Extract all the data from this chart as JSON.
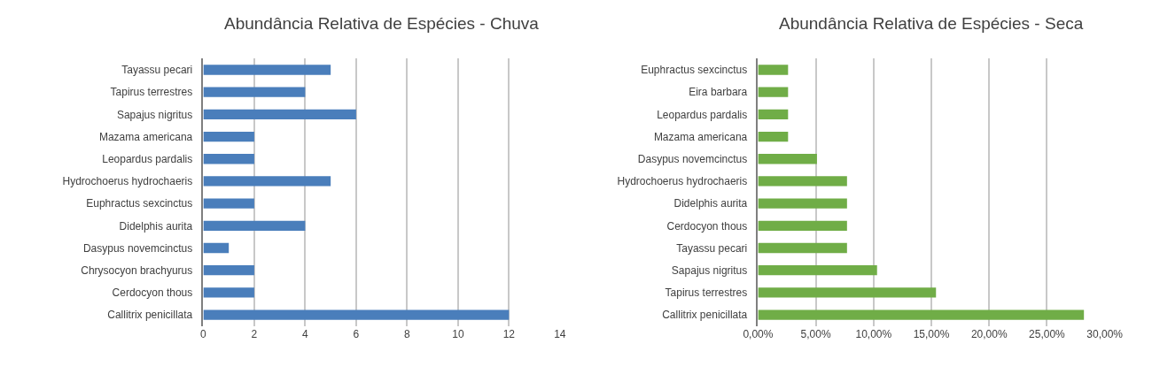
{
  "chart_data": [
    {
      "type": "bar",
      "orientation": "horizontal",
      "title": "Abundância Relativa de Espécies - Chuva",
      "categories": [
        "Tayassu pecari",
        "Tapirus terrestres",
        "Sapajus nigritus",
        "Mazama americana",
        "Leopardus pardalis",
        "Hydrochoerus hydrochaeris",
        "Euphractus sexcinctus",
        "Didelphis aurita",
        "Dasypus novemcinctus",
        "Chrysocyon brachyurus",
        "Cerdocyon thous",
        "Callitrix penicillata"
      ],
      "values": [
        5,
        4,
        6,
        2,
        2,
        5,
        2,
        4,
        1,
        2,
        2,
        12
      ],
      "color": "#4a7ebb",
      "xlim": [
        0,
        14
      ],
      "xticks": [
        0,
        2,
        4,
        6,
        8,
        10,
        12,
        14
      ],
      "grid": "x"
    },
    {
      "type": "bar",
      "orientation": "horizontal",
      "title": "Abundância Relativa de Espécies - Seca",
      "categories": [
        "Euphractus sexcinctus",
        "Eira barbara",
        "Leopardus pardalis",
        "Mazama americana",
        "Dasypus novemcinctus",
        "Hydrochoerus hydrochaeris",
        "Didelphis aurita",
        "Cerdocyon thous",
        "Tayassu pecari",
        "Sapajus nigritus",
        "Tapirus terrestres",
        "Callitrix penicillata"
      ],
      "values": [
        2.6,
        2.6,
        2.6,
        2.6,
        5.1,
        7.7,
        7.7,
        7.7,
        7.7,
        10.3,
        15.4,
        28.2
      ],
      "color": "#70ad47",
      "xlim": [
        0,
        30
      ],
      "xticks": [
        {
          "value": 0,
          "label": "0,00%"
        },
        {
          "value": 5,
          "label": "5,00%"
        },
        {
          "value": 10,
          "label": "10,00%"
        },
        {
          "value": 15,
          "label": "15,00%"
        },
        {
          "value": 20,
          "label": "20,00%"
        },
        {
          "value": 25,
          "label": "25,00%"
        },
        {
          "value": 30,
          "label": "30,00%"
        }
      ],
      "grid": "x"
    }
  ]
}
